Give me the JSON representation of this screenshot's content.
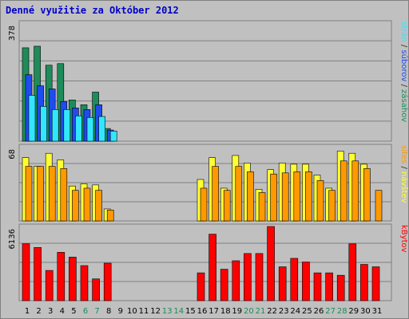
{
  "title": "Denné využitie za Október 2012",
  "colors": {
    "strany": "#1e8c5a",
    "subory": "#1e4cf0",
    "zasahy": "#33e6ff",
    "navstevy": "#ffff33",
    "sites": "#ff9900",
    "kbytes": "#ff0000",
    "weekend_label": "#1e8c5a",
    "weekday_label": "#000000"
  },
  "chart_data": [
    {
      "type": "bar",
      "title": "",
      "tick_label": "378",
      "ylim": [
        0,
        378
      ],
      "categories": [
        "1",
        "2",
        "3",
        "4",
        "5",
        "6",
        "7",
        "8",
        "9",
        "10",
        "11",
        "12",
        "13",
        "14",
        "15",
        "16",
        "17",
        "18",
        "19",
        "20",
        "21",
        "22",
        "23",
        "24",
        "25",
        "26",
        "27",
        "28",
        "29",
        "30",
        "31"
      ],
      "weekend_days": [
        "6",
        "7",
        "13",
        "14",
        "20",
        "21",
        "27",
        "28"
      ],
      "series": [
        {
          "name": "zásahov",
          "values": [
            295,
            300,
            240,
            245,
            130,
            115,
            155,
            40,
            0,
            0,
            0,
            0,
            0,
            0,
            0,
            0,
            0,
            0,
            0,
            0,
            0,
            0,
            0,
            0,
            0,
            0,
            0,
            0,
            0,
            0,
            0
          ]
        },
        {
          "name": "súborov",
          "values": [
            210,
            175,
            165,
            125,
            105,
            100,
            115,
            35,
            0,
            0,
            0,
            0,
            0,
            0,
            0,
            0,
            0,
            0,
            0,
            0,
            0,
            0,
            0,
            0,
            0,
            0,
            0,
            0,
            0,
            0,
            0
          ]
        },
        {
          "name": "strán",
          "values": [
            145,
            110,
            100,
            100,
            80,
            75,
            78,
            32,
            0,
            0,
            0,
            0,
            0,
            0,
            0,
            0,
            0,
            0,
            0,
            0,
            0,
            0,
            0,
            0,
            0,
            0,
            0,
            0,
            0,
            0,
            0
          ]
        }
      ],
      "right_labels": [
        {
          "text": "strán",
          "color": "#33e6ff"
        },
        {
          "text": " / ",
          "color": "#333333"
        },
        {
          "text": "súborov",
          "color": "#1e4cf0"
        },
        {
          "text": " / ",
          "color": "#333333"
        },
        {
          "text": "zásahov",
          "color": "#1e8c5a"
        }
      ]
    },
    {
      "type": "bar",
      "title": "",
      "tick_label": "68",
      "ylim": [
        0,
        68
      ],
      "categories": [
        "1",
        "2",
        "3",
        "4",
        "5",
        "6",
        "7",
        "8",
        "9",
        "10",
        "11",
        "12",
        "13",
        "14",
        "15",
        "16",
        "17",
        "18",
        "19",
        "20",
        "21",
        "22",
        "23",
        "24",
        "25",
        "26",
        "27",
        "28",
        "29",
        "30",
        "31"
      ],
      "series": [
        {
          "name": "návštev",
          "values": [
            58,
            50,
            62,
            56,
            32,
            34,
            33,
            11,
            0,
            0,
            0,
            0,
            0,
            0,
            0,
            38,
            58,
            30,
            60,
            53,
            29,
            47,
            53,
            52,
            52,
            42,
            30,
            64,
            62,
            52,
            0
          ]
        },
        {
          "name": "sites",
          "values": [
            50,
            50,
            50,
            48,
            28,
            30,
            28,
            10,
            0,
            0,
            0,
            0,
            0,
            0,
            0,
            30,
            50,
            28,
            50,
            45,
            26,
            43,
            44,
            45,
            45,
            37,
            28,
            55,
            55,
            48,
            28
          ]
        }
      ],
      "right_labels": [
        {
          "text": "sites",
          "color": "#ff9900"
        },
        {
          "text": " / ",
          "color": "#333333"
        },
        {
          "text": "návštev",
          "color": "#ffff33"
        }
      ]
    },
    {
      "type": "bar",
      "title": "",
      "tick_label": "6136",
      "ylim": [
        0,
        6136
      ],
      "categories": [
        "1",
        "2",
        "3",
        "4",
        "5",
        "6",
        "7",
        "8",
        "9",
        "10",
        "11",
        "12",
        "13",
        "14",
        "15",
        "16",
        "17",
        "18",
        "19",
        "20",
        "21",
        "22",
        "23",
        "24",
        "25",
        "26",
        "27",
        "28",
        "29",
        "30",
        "31"
      ],
      "series": [
        {
          "name": "kBytov",
          "values": [
            4700,
            4400,
            2500,
            4000,
            3600,
            2900,
            1800,
            3100,
            0,
            0,
            0,
            0,
            0,
            0,
            0,
            2300,
            5500,
            2600,
            3300,
            3900,
            3900,
            6136,
            2800,
            3500,
            3200,
            2300,
            2300,
            2100,
            4700,
            3000,
            2800
          ]
        }
      ],
      "right_labels": [
        {
          "text": "kBytov",
          "color": "#ff0000"
        }
      ]
    }
  ]
}
